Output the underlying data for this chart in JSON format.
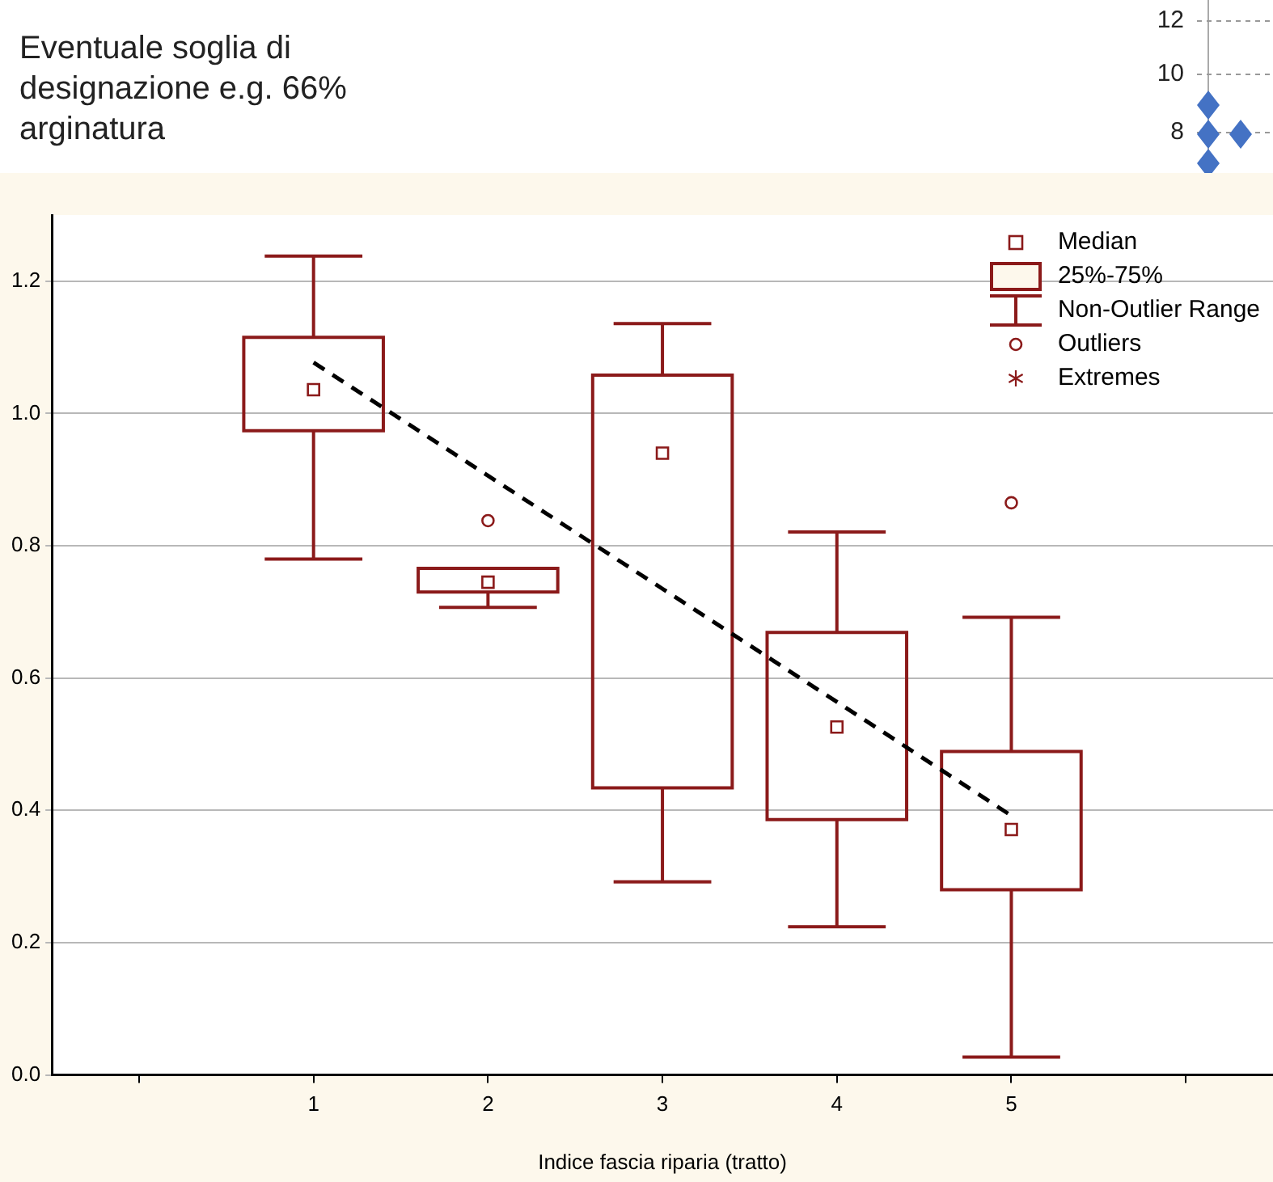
{
  "chart_data": [
    {
      "type": "box",
      "title": "Eventuale soglia di designazione e.g. 66% arginatura",
      "xlabel": "Indice fascia riparia (tratto)",
      "categories": [
        null,
        "1",
        "2",
        "3",
        "4",
        "5",
        null
      ],
      "series": [
        {
          "type": "box",
          "color": "#8b1a1a",
          "boxes": [
            null,
            {
              "low": 0.78,
              "q1": 0.974,
              "median": 1.036,
              "q3": 1.115,
              "high": 1.238
            },
            {
              "low": 0.707,
              "q1": 0.73,
              "median": 0.745,
              "q3": 0.766,
              "high": 0.766,
              "outliers": [
                0.838
              ]
            },
            {
              "low": 0.292,
              "q1": 0.434,
              "median": 0.94,
              "q3": 1.058,
              "high": 1.136
            },
            {
              "low": 0.224,
              "q1": 0.386,
              "median": 0.526,
              "q3": 0.669,
              "high": 0.821
            },
            {
              "low": 0.027,
              "q1": 0.28,
              "median": 0.371,
              "q3": 0.489,
              "high": 0.692,
              "outliers": [
                0.865
              ]
            },
            null
          ]
        },
        {
          "type": "line",
          "color": "#000000",
          "line_style": "dashed",
          "marker": "none",
          "values": [
            null,
            1.077,
            0.906,
            0.735,
            0.564,
            0.392,
            null
          ]
        }
      ],
      "ylim": [
        0,
        1.3
      ],
      "yticks": [
        {
          "value": 0,
          "label": "0.0"
        },
        {
          "value": 0.2,
          "label": "0.2"
        },
        {
          "value": 0.4,
          "label": "0.4"
        },
        {
          "value": 0.6,
          "label": "0.6"
        },
        {
          "value": 0.8,
          "label": "0.8"
        },
        {
          "value": 1,
          "label": "1.0"
        },
        {
          "value": 1.2,
          "label": "1.2"
        }
      ],
      "grid": "y",
      "annotations": [
        "Median",
        "25%-75%",
        "Non-Outlier Range",
        "Outliers",
        "Extremes"
      ]
    },
    {
      "type": "other",
      "annotations": [
        "12",
        "10",
        "8"
      ]
    }
  ]
}
